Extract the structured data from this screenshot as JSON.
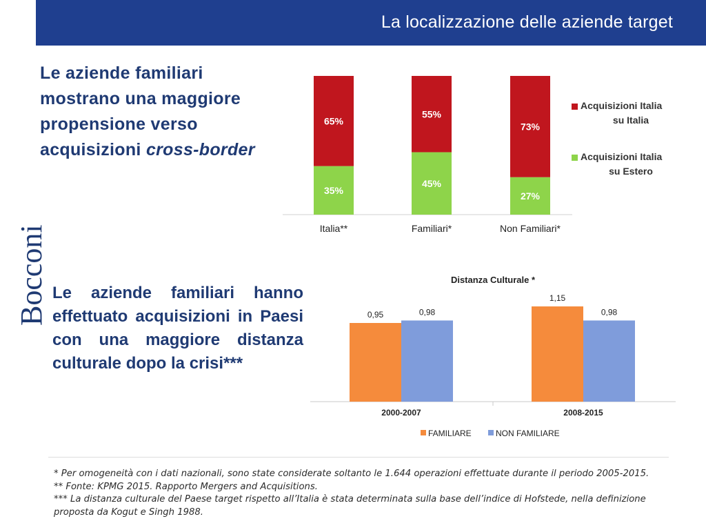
{
  "header": {
    "title": "La localizzazione delle aziende target"
  },
  "logo": {
    "text": "Bocconi"
  },
  "heading1": {
    "line_a": "Le aziende familiari mostrano una maggiore propensione verso acquisizioni ",
    "line_b": "cross-border"
  },
  "heading2": {
    "text": "Le aziende familiari hanno effettuato acquisizioni in Paesi con una maggiore distanza culturale dopo la crisi***"
  },
  "colors": {
    "header": "#1f3f8f",
    "red": "#c0161e",
    "green": "#8ed44a",
    "orange": "#f58b3c",
    "blue": "#7f9cdb",
    "text_dark": "#1f3a73"
  },
  "chart_data": [
    {
      "type": "bar",
      "stacked": true,
      "categories": [
        "Italia**",
        "Familiari*",
        "Non Familiari*"
      ],
      "series": [
        {
          "name": "Acquisizioni Italia su Estero",
          "values": [
            35,
            45,
            27
          ],
          "labels": [
            "35%",
            "45%",
            "27%"
          ],
          "color": "#8ed44a"
        },
        {
          "name": "Acquisizioni Italia su Italia",
          "values": [
            65,
            55,
            73
          ],
          "labels": [
            "65%",
            "55%",
            "73%"
          ],
          "color": "#c0161e"
        }
      ],
      "legend": [
        {
          "name": "Acquisizioni Italia su Italia",
          "line1": "Acquisizioni Italia",
          "line2": "su Italia",
          "color": "#c0161e"
        },
        {
          "name": "Acquisizioni Italia su Estero",
          "line1": "Acquisizioni Italia",
          "line2": "su Estero",
          "color": "#8ed44a"
        }
      ],
      "ylim": [
        0,
        100
      ],
      "legend_position": "right"
    },
    {
      "type": "bar",
      "title": "Distanza Culturale *",
      "categories": [
        "2000-2007",
        "2008-2015"
      ],
      "series": [
        {
          "name": "FAMILIARE",
          "values": [
            0.95,
            1.15
          ],
          "labels": [
            "0,95",
            "1,15"
          ],
          "color": "#f58b3c"
        },
        {
          "name": "NON FAMILIARE",
          "values": [
            0.98,
            0.98
          ],
          "labels": [
            "0,98",
            "0,98"
          ],
          "color": "#7f9cdb"
        }
      ],
      "ylim": [
        0,
        1.25
      ],
      "legend_position": "bottom"
    }
  ],
  "footnotes": [
    "* Per omogeneità con i dati nazionali, sono state considerate soltanto le 1.644 operazioni effettuate durante il periodo 2005-2015.",
    "** Fonte: KPMG 2015. Rapporto Mergers and Acquisitions.",
    "*** La distanza culturale del Paese target rispetto all’Italia è stata determinata sulla base dell’indice di Hofstede, nella definizione",
    "proposta da Kogut e Singh  1988."
  ]
}
